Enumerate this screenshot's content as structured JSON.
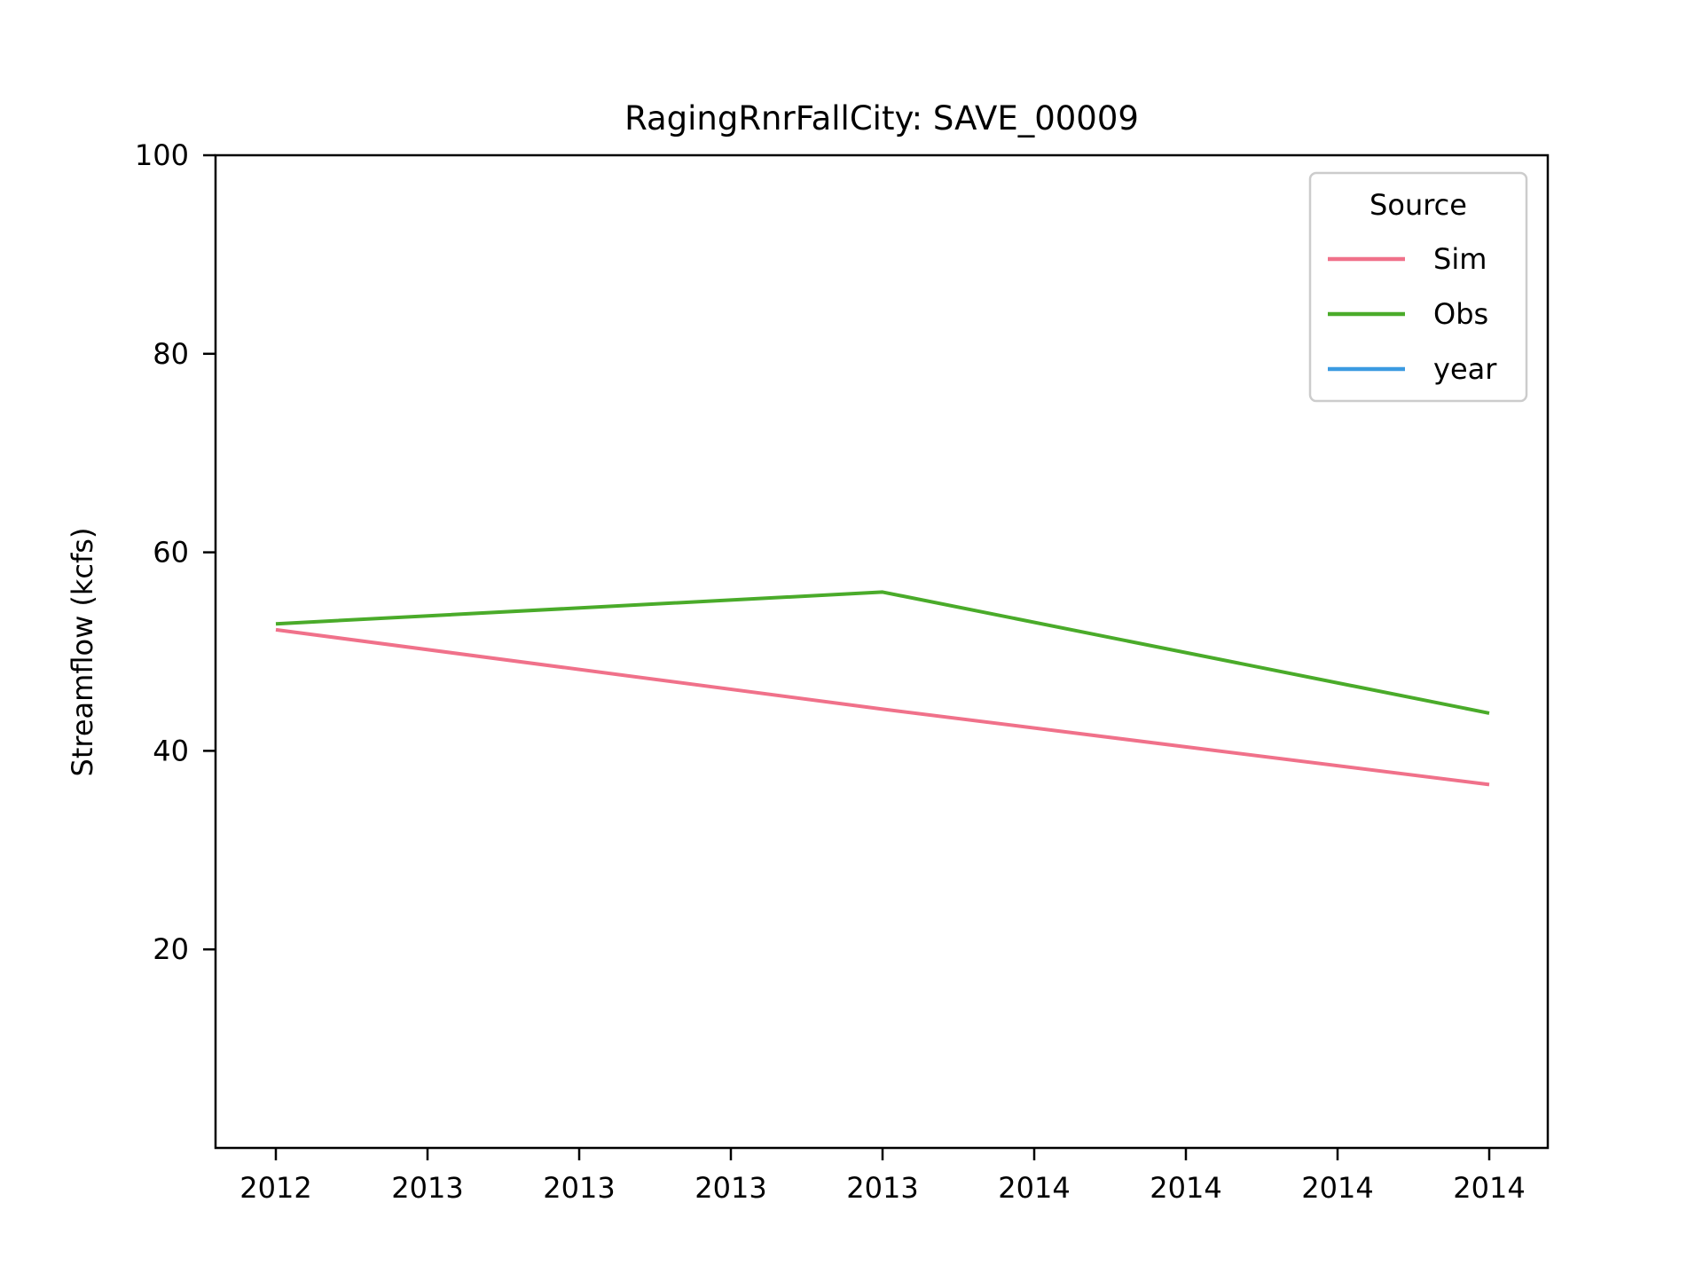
{
  "chart_data": {
    "type": "line",
    "title": "RagingRnrFallCity: SAVE_00009",
    "xlabel": "",
    "ylabel": "Streamflow (kcfs)",
    "x_tick_labels": [
      "2012",
      "2013",
      "2013",
      "2013",
      "2013",
      "2014",
      "2014",
      "2014",
      "2014"
    ],
    "y_ticks": [
      20,
      40,
      60,
      80,
      100
    ],
    "ylim": [
      0,
      100
    ],
    "x": [
      "2012-10",
      "2013-01",
      "2013-04",
      "2013-07",
      "2013-10",
      "2014-01",
      "2014-04",
      "2014-07",
      "2014-10"
    ],
    "series": [
      {
        "name": "Sim",
        "color": "#f0718a",
        "x": [
          "2012-10",
          "2013-10",
          "2014-10"
        ],
        "values": [
          52.2,
          44.2,
          36.6
        ]
      },
      {
        "name": "Obs",
        "color": "#4aab2a",
        "x": [
          "2012-10",
          "2013-10",
          "2014-10"
        ],
        "values": [
          52.8,
          56.0,
          43.8
        ]
      },
      {
        "name": "year",
        "color": "#3b9ae1",
        "x": [],
        "values": []
      }
    ],
    "legend": {
      "title": "Source",
      "position": "top-right"
    },
    "grid": false
  }
}
